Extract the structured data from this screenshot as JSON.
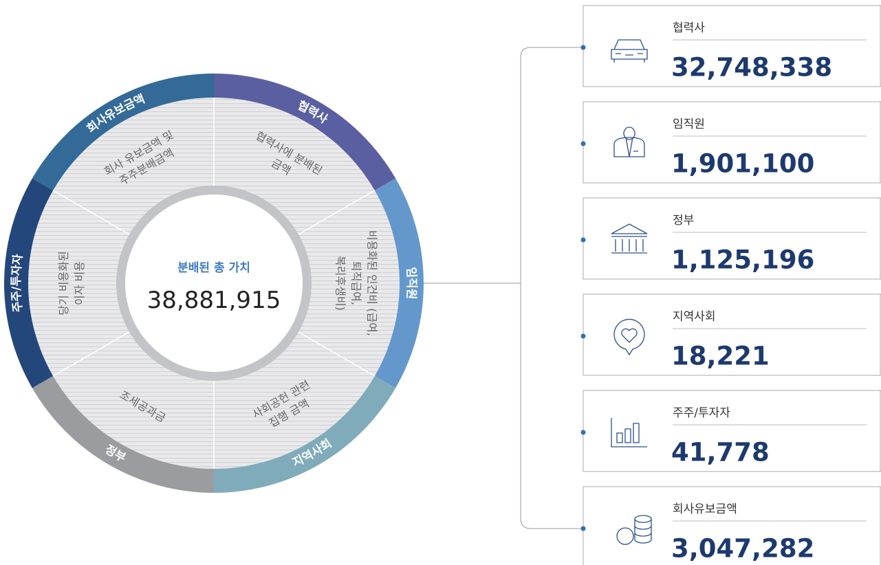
{
  "center": {
    "label": "분배된 총 가치",
    "value": "38,881,915"
  },
  "segments": [
    {
      "name": "협력사",
      "lines": [
        "협력사에 분배된",
        "금액"
      ]
    },
    {
      "name": "임직원",
      "lines": [
        "비용화된 인건비 (급여,",
        "퇴직급여,",
        "복리후생비)"
      ]
    },
    {
      "name": "지역사회",
      "lines": [
        "사회공헌 관련",
        "집행 금액"
      ]
    },
    {
      "name": "정부",
      "lines": [
        "조세공과금"
      ]
    },
    {
      "name": "주주/투자자",
      "lines": [
        "당기 비용화된",
        "이자 비용"
      ]
    },
    {
      "name": "회사유보금액",
      "lines": [
        "회사 유보금액 및",
        "주주분배금액"
      ]
    }
  ],
  "cards": [
    {
      "label": "협력사",
      "value": "32,748,338"
    },
    {
      "label": "임직원",
      "value": "1,901,100"
    },
    {
      "label": "정부",
      "value": "1,125,196"
    },
    {
      "label": "지역사회",
      "value": "18,221"
    },
    {
      "label": "주주/투자자",
      "value": "41,778"
    },
    {
      "label": "회사유보금액",
      "value": "3,047,282"
    }
  ]
}
